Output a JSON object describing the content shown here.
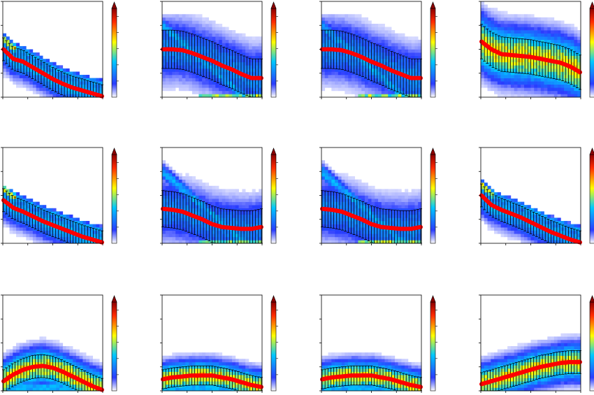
{
  "figure": {
    "rows": 3,
    "cols": 4,
    "colormap": [
      "#ffffff",
      "#2a3cff",
      "#00c8ff",
      "#ffff00",
      "#ff2a00",
      "#8b0000"
    ],
    "colorbar_extend": "max",
    "mean_color": "#ff0000",
    "errorbar_color": "#000000"
  },
  "chart_data": [
    {
      "type": "heatmap",
      "shape": "falling-steep",
      "title": "",
      "xlabel": "",
      "ylabel": "",
      "mean_line": {
        "x": [
          0.0,
          0.1,
          0.2,
          0.3,
          0.4,
          0.5,
          0.6,
          0.7,
          0.8,
          0.9,
          1.0
        ],
        "y": [
          0.5,
          0.4,
          0.37,
          0.31,
          0.25,
          0.19,
          0.14,
          0.1,
          0.07,
          0.04,
          0.01
        ]
      },
      "errorbar_halfwidth": 0.12
    },
    {
      "type": "heatmap",
      "shape": "plateau-decline",
      "title": "",
      "xlabel": "",
      "ylabel": "",
      "mean_line": {
        "x": [
          0.0,
          0.1,
          0.2,
          0.3,
          0.4,
          0.5,
          0.6,
          0.7,
          0.8,
          0.9,
          1.0
        ],
        "y": [
          0.5,
          0.5,
          0.49,
          0.46,
          0.42,
          0.38,
          0.33,
          0.29,
          0.24,
          0.2,
          0.2
        ]
      },
      "errorbar_halfwidth": 0.2
    },
    {
      "type": "heatmap",
      "shape": "plateau-decline",
      "title": "",
      "xlabel": "",
      "ylabel": "",
      "mean_line": {
        "x": [
          0.0,
          0.1,
          0.2,
          0.3,
          0.4,
          0.5,
          0.6,
          0.7,
          0.8,
          0.9,
          1.0
        ],
        "y": [
          0.5,
          0.5,
          0.49,
          0.46,
          0.42,
          0.37,
          0.33,
          0.28,
          0.24,
          0.2,
          0.2
        ]
      },
      "errorbar_halfwidth": 0.2
    },
    {
      "type": "heatmap",
      "shape": "gentle-decline",
      "title": "",
      "xlabel": "",
      "ylabel": "",
      "mean_line": {
        "x": [
          0.0,
          0.1,
          0.2,
          0.3,
          0.4,
          0.5,
          0.6,
          0.7,
          0.8,
          0.9,
          1.0
        ],
        "y": [
          0.58,
          0.5,
          0.45,
          0.44,
          0.43,
          0.42,
          0.4,
          0.38,
          0.36,
          0.32,
          0.26
        ]
      },
      "errorbar_halfwidth": 0.18
    },
    {
      "type": "heatmap",
      "shape": "linear-decline",
      "title": "",
      "xlabel": "",
      "ylabel": "",
      "mean_line": {
        "x": [
          0.0,
          0.1,
          0.2,
          0.3,
          0.4,
          0.5,
          0.6,
          0.7,
          0.8,
          0.9,
          1.0
        ],
        "y": [
          0.45,
          0.37,
          0.33,
          0.28,
          0.23,
          0.19,
          0.15,
          0.11,
          0.07,
          0.04,
          0.01
        ]
      },
      "errorbar_halfwidth": 0.12
    },
    {
      "type": "heatmap",
      "shape": "plateau-decline",
      "title": "",
      "xlabel": "",
      "ylabel": "",
      "mean_line": {
        "x": [
          0.0,
          0.1,
          0.2,
          0.3,
          0.4,
          0.5,
          0.6,
          0.7,
          0.8,
          0.9,
          1.0
        ],
        "y": [
          0.36,
          0.35,
          0.33,
          0.29,
          0.25,
          0.2,
          0.17,
          0.16,
          0.15,
          0.15,
          0.17
        ]
      },
      "errorbar_halfwidth": 0.19
    },
    {
      "type": "heatmap",
      "shape": "plateau-decline",
      "title": "",
      "xlabel": "",
      "ylabel": "",
      "mean_line": {
        "x": [
          0.0,
          0.1,
          0.2,
          0.3,
          0.4,
          0.5,
          0.6,
          0.7,
          0.8,
          0.9,
          1.0
        ],
        "y": [
          0.36,
          0.35,
          0.33,
          0.29,
          0.25,
          0.2,
          0.17,
          0.16,
          0.15,
          0.15,
          0.17
        ]
      },
      "errorbar_halfwidth": 0.19
    },
    {
      "type": "heatmap",
      "shape": "falling-steep",
      "title": "",
      "xlabel": "",
      "ylabel": "",
      "mean_line": {
        "x": [
          0.0,
          0.1,
          0.2,
          0.3,
          0.4,
          0.5,
          0.6,
          0.7,
          0.8,
          0.9,
          1.0
        ],
        "y": [
          0.5,
          0.4,
          0.35,
          0.31,
          0.27,
          0.22,
          0.17,
          0.12,
          0.08,
          0.04,
          0.01
        ]
      },
      "errorbar_halfwidth": 0.12
    },
    {
      "type": "heatmap",
      "shape": "hump",
      "title": "",
      "xlabel": "",
      "ylabel": "",
      "mean_line": {
        "x": [
          0.0,
          0.1,
          0.2,
          0.3,
          0.4,
          0.5,
          0.6,
          0.7,
          0.8,
          0.9,
          1.0
        ],
        "y": [
          0.1,
          0.17,
          0.22,
          0.25,
          0.26,
          0.24,
          0.2,
          0.15,
          0.1,
          0.05,
          0.01
        ]
      },
      "errorbar_halfwidth": 0.12
    },
    {
      "type": "heatmap",
      "shape": "low-hump",
      "title": "",
      "xlabel": "",
      "ylabel": "",
      "mean_line": {
        "x": [
          0.0,
          0.1,
          0.2,
          0.3,
          0.4,
          0.5,
          0.6,
          0.7,
          0.8,
          0.9,
          1.0
        ],
        "y": [
          0.12,
          0.14,
          0.15,
          0.16,
          0.16,
          0.16,
          0.14,
          0.12,
          0.09,
          0.06,
          0.04
        ]
      },
      "errorbar_halfwidth": 0.1
    },
    {
      "type": "heatmap",
      "shape": "low-hump",
      "title": "",
      "xlabel": "",
      "ylabel": "",
      "mean_line": {
        "x": [
          0.0,
          0.1,
          0.2,
          0.3,
          0.4,
          0.5,
          0.6,
          0.7,
          0.8,
          0.9,
          1.0
        ],
        "y": [
          0.12,
          0.14,
          0.15,
          0.16,
          0.16,
          0.16,
          0.14,
          0.12,
          0.09,
          0.06,
          0.04
        ]
      },
      "errorbar_halfwidth": 0.1
    },
    {
      "type": "heatmap",
      "shape": "rising",
      "title": "",
      "xlabel": "",
      "ylabel": "",
      "mean_line": {
        "x": [
          0.0,
          0.1,
          0.2,
          0.3,
          0.4,
          0.5,
          0.6,
          0.7,
          0.8,
          0.9,
          1.0
        ],
        "y": [
          0.07,
          0.1,
          0.13,
          0.16,
          0.19,
          0.22,
          0.25,
          0.27,
          0.29,
          0.3,
          0.3
        ]
      },
      "errorbar_halfwidth": 0.12
    }
  ]
}
